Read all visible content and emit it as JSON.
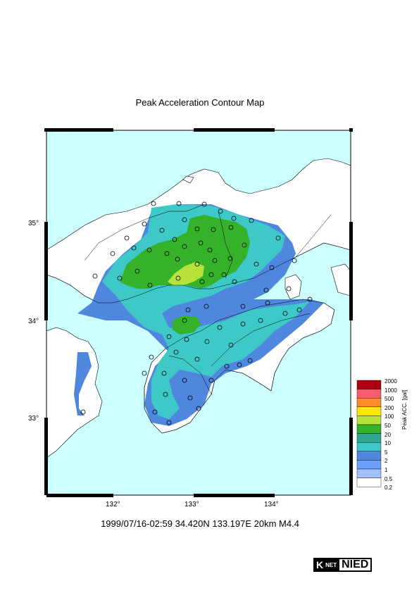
{
  "title": "Peak Acceleration Contour Map",
  "caption": "1999/07/16-02:59 34.420N 133.197E 20km M4.4",
  "lat_ticks": [
    "35°",
    "34°",
    "33°"
  ],
  "lon_ticks": [
    "132°",
    "133°",
    "134°"
  ],
  "legend": {
    "title": "Peak ACC. [gal]",
    "labels": [
      "2000",
      "1000",
      "500",
      "200",
      "100",
      "50",
      "20",
      "10",
      "5",
      "2",
      "1",
      "0.5",
      "0.2"
    ],
    "colors": [
      "#b0000f",
      "#ff5a6e",
      "#ff8c28",
      "#ffe600",
      "#b6e23a",
      "#36b22a",
      "#2ea58f",
      "#3ec8c8",
      "#4f86de",
      "#6ea0ff",
      "#a0c0ff",
      "#ffffff"
    ]
  },
  "colors": {
    "sea": "#ccffff",
    "land": "#ffffff",
    "blue": "#4f86de",
    "teal": "#3ec8c8",
    "green": "#36b22a",
    "lime": "#b6e23a"
  },
  "epicenter": {
    "lat": 34.42,
    "lon": 133.197,
    "depth": "20km",
    "magnitude": "M4.4"
  },
  "logo": {
    "k": "K",
    "net": "NET",
    "nied": "NIED"
  }
}
